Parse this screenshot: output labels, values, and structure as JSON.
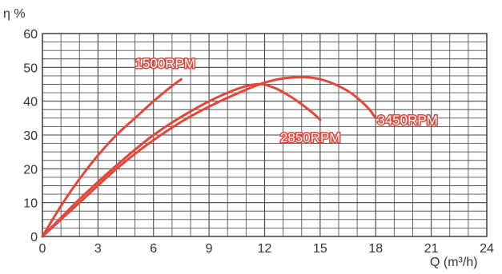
{
  "chart_data": {
    "type": "line",
    "title": "",
    "xlabel": "Q (m³/h)",
    "ylabel": "η %",
    "xlim": [
      0,
      24
    ],
    "ylim": [
      0,
      60
    ],
    "x_ticks": [
      "0",
      "3",
      "6",
      "9",
      "12",
      "15",
      "18",
      "21",
      "24"
    ],
    "y_ticks": [
      "0",
      "10",
      "20",
      "30",
      "40",
      "50",
      "60"
    ],
    "grid": true,
    "line_color": "#e2473a",
    "series": [
      {
        "name": "1500RPM",
        "x": [
          0,
          1,
          2,
          3,
          4,
          5,
          6,
          7,
          7.5
        ],
        "y": [
          0,
          9,
          17,
          24,
          30,
          35,
          40,
          44.5,
          46.5
        ]
      },
      {
        "name": "2850RPM",
        "x": [
          0,
          1,
          2,
          4,
          6,
          8,
          10,
          11.5,
          12.5,
          13.5,
          14.5,
          15
        ],
        "y": [
          0,
          5.5,
          11,
          21,
          30,
          37,
          42.5,
          45,
          44,
          41,
          37,
          34.5
        ]
      },
      {
        "name": "3450RPM",
        "x": [
          0,
          1,
          2,
          4,
          6,
          8,
          10,
          12,
          13.5,
          15,
          16.5,
          17.5,
          18
        ],
        "y": [
          0,
          5,
          10,
          20,
          28.5,
          35.5,
          41,
          45.5,
          47,
          46.5,
          43,
          38.5,
          35
        ]
      }
    ]
  }
}
